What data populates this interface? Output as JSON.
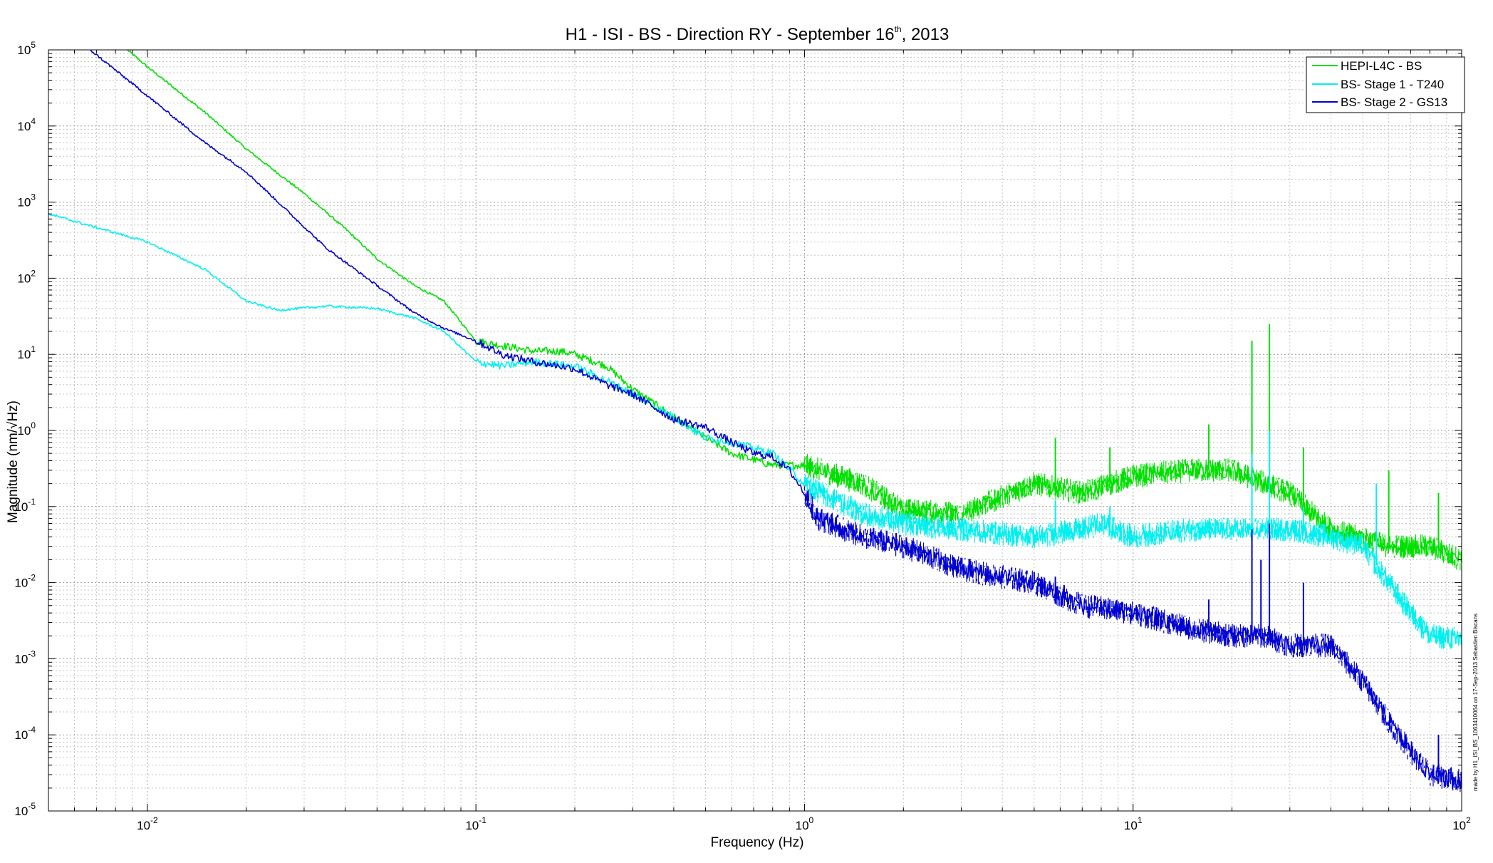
{
  "chart_data": {
    "type": "line",
    "title_main": "H1 - ISI - BS - Direction RY - September 16",
    "title_sup": "th",
    "title_tail": ", 2013",
    "xlabel": "Frequency (Hz)",
    "ylabel": "Magnitude (nm/√Hz)",
    "x_scale": "log",
    "y_scale": "log",
    "xlim": [
      0.005,
      100
    ],
    "ylim": [
      1e-05,
      100000
    ],
    "grid": true,
    "legend_position": "top-right",
    "x_ticks": [
      {
        "value": 0.01,
        "base": "10",
        "exp": "-2"
      },
      {
        "value": 0.1,
        "base": "10",
        "exp": "-1"
      },
      {
        "value": 1,
        "base": "10",
        "exp": "0"
      },
      {
        "value": 10,
        "base": "10",
        "exp": "1"
      },
      {
        "value": 100,
        "base": "10",
        "exp": "2"
      }
    ],
    "y_ticks": [
      {
        "value": 100000,
        "base": "10",
        "exp": "5"
      },
      {
        "value": 10000,
        "base": "10",
        "exp": "4"
      },
      {
        "value": 1000,
        "base": "10",
        "exp": "3"
      },
      {
        "value": 100,
        "base": "10",
        "exp": "2"
      },
      {
        "value": 10,
        "base": "10",
        "exp": "1"
      },
      {
        "value": 1,
        "base": "10",
        "exp": "0"
      },
      {
        "value": 0.1,
        "base": "10",
        "exp": "-1"
      },
      {
        "value": 0.01,
        "base": "10",
        "exp": "-2"
      },
      {
        "value": 0.001,
        "base": "10",
        "exp": "-3"
      },
      {
        "value": 0.0001,
        "base": "10",
        "exp": "-4"
      },
      {
        "value": 1e-05,
        "base": "10",
        "exp": "-5"
      }
    ],
    "series": [
      {
        "name": "HEPI-L4C - BS",
        "color": "#00e000",
        "x": [
          0.0087,
          0.01,
          0.015,
          0.02,
          0.03,
          0.04,
          0.05,
          0.065,
          0.08,
          0.1,
          0.12,
          0.15,
          0.18,
          0.2,
          0.25,
          0.3,
          0.4,
          0.5,
          0.6,
          0.8,
          1.0,
          1.5,
          2,
          3,
          5,
          7,
          10,
          15,
          20,
          30,
          40,
          60,
          80,
          100
        ],
        "y": [
          100000,
          60000,
          15000,
          5000,
          1300,
          450,
          180,
          80,
          50,
          15,
          13,
          11,
          11,
          10,
          7,
          3.5,
          1.5,
          0.8,
          0.5,
          0.35,
          0.35,
          0.2,
          0.09,
          0.08,
          0.2,
          0.15,
          0.25,
          0.3,
          0.3,
          0.15,
          0.05,
          0.03,
          0.03,
          0.02
        ],
        "peaks": [
          {
            "x": 5.8,
            "y": 0.8
          },
          {
            "x": 8.5,
            "y": 0.6
          },
          {
            "x": 17,
            "y": 1.2
          },
          {
            "x": 23,
            "y": 15
          },
          {
            "x": 26,
            "y": 25
          },
          {
            "x": 33,
            "y": 0.6
          },
          {
            "x": 60,
            "y": 0.3
          },
          {
            "x": 85,
            "y": 0.15
          }
        ]
      },
      {
        "name": "BS- Stage 1 - T240",
        "color": "#00f0f0",
        "x": [
          0.005,
          0.01,
          0.015,
          0.02,
          0.025,
          0.035,
          0.05,
          0.065,
          0.08,
          0.1,
          0.12,
          0.15,
          0.2,
          0.25,
          0.3,
          0.4,
          0.5,
          0.6,
          0.8,
          1.0,
          1.5,
          2,
          3,
          5,
          7,
          8,
          10,
          15,
          20,
          25,
          30,
          40,
          50,
          60,
          70,
          80,
          100
        ],
        "y": [
          700,
          300,
          130,
          50,
          38,
          43,
          40,
          30,
          20,
          8,
          7,
          8,
          7,
          4.5,
          3.0,
          1.5,
          0.8,
          0.7,
          0.5,
          0.2,
          0.08,
          0.06,
          0.05,
          0.04,
          0.05,
          0.06,
          0.04,
          0.05,
          0.05,
          0.05,
          0.05,
          0.04,
          0.03,
          0.01,
          0.004,
          0.002,
          0.0018
        ],
        "peaks": [
          {
            "x": 5.8,
            "y": 0.12
          },
          {
            "x": 8.5,
            "y": 0.1
          },
          {
            "x": 23,
            "y": 0.5
          },
          {
            "x": 26,
            "y": 1.0
          },
          {
            "x": 33,
            "y": 0.1
          },
          {
            "x": 55,
            "y": 0.2
          }
        ]
      },
      {
        "name": "BS- Stage 2 - GS13",
        "color": "#0000d0",
        "x": [
          0.0067,
          0.01,
          0.015,
          0.02,
          0.025,
          0.035,
          0.05,
          0.065,
          0.08,
          0.1,
          0.12,
          0.15,
          0.2,
          0.25,
          0.3,
          0.4,
          0.5,
          0.6,
          0.7,
          0.8,
          0.9,
          1.0,
          1.1,
          1.5,
          2,
          3,
          5,
          7,
          10,
          15,
          20,
          25,
          30,
          40,
          50,
          60,
          70,
          80,
          100
        ],
        "y": [
          100000,
          25000,
          6000,
          2500,
          1000,
          250,
          80,
          35,
          22,
          15,
          10,
          8,
          6.5,
          4,
          3.0,
          1.4,
          1.1,
          0.7,
          0.5,
          0.45,
          0.3,
          0.15,
          0.07,
          0.04,
          0.03,
          0.015,
          0.01,
          0.005,
          0.004,
          0.0025,
          0.002,
          0.002,
          0.0015,
          0.0015,
          0.0005,
          0.00015,
          6e-05,
          3e-05,
          2.5e-05
        ],
        "peaks": [
          {
            "x": 5.8,
            "y": 0.012
          },
          {
            "x": 8.5,
            "y": 0.006
          },
          {
            "x": 17,
            "y": 0.006
          },
          {
            "x": 23,
            "y": 0.05
          },
          {
            "x": 24.5,
            "y": 0.02
          },
          {
            "x": 26,
            "y": 0.06
          },
          {
            "x": 33,
            "y": 0.01
          },
          {
            "x": 85,
            "y": 0.0001
          }
        ]
      }
    ]
  },
  "watermark": "made by H1_ISI_BS_1063410064 on 17-Sep-2013 Sebastien Biscans"
}
